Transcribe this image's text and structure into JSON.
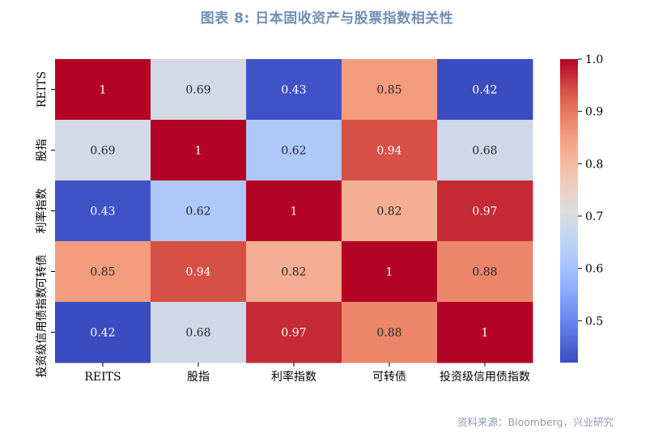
{
  "header": {
    "title": "图表 8: 日本固收资产与股票指数相关性"
  },
  "footer": {
    "source": "资料来源：Bloomberg，兴业研究"
  },
  "chart_data": {
    "type": "heatmap",
    "title": "图表 8: 日本固收资产与股票指数相关性",
    "x_labels": [
      "REITS",
      "股指",
      "利率指数",
      "可转债",
      "投资级信用债指数"
    ],
    "y_labels": [
      "REITS",
      "股指",
      "利率指数",
      "可转债",
      "投资级信用债指数"
    ],
    "cell_labels": [
      [
        "1",
        "0.69",
        "0.43",
        "0.85",
        "0.42"
      ],
      [
        "0.69",
        "1",
        "0.62",
        "0.94",
        "0.68"
      ],
      [
        "0.43",
        "0.62",
        "1",
        "0.82",
        "0.97"
      ],
      [
        "0.85",
        "0.94",
        "0.82",
        "1",
        "0.88"
      ],
      [
        "0.42",
        "0.68",
        "0.97",
        "0.88",
        "1"
      ]
    ],
    "values": [
      [
        1,
        0.69,
        0.43,
        0.85,
        0.42
      ],
      [
        0.69,
        1,
        0.62,
        0.94,
        0.68
      ],
      [
        0.43,
        0.62,
        1,
        0.82,
        0.97
      ],
      [
        0.85,
        0.94,
        0.82,
        1,
        0.88
      ],
      [
        0.42,
        0.68,
        0.97,
        0.88,
        1
      ]
    ],
    "colormap": "coolwarm",
    "vmin": 0.42,
    "vmax": 1.0,
    "colorbar_ticks": [
      "0.5",
      "0.6",
      "0.7",
      "0.8",
      "0.9",
      "1.0"
    ],
    "colorbar_tick_values": [
      0.5,
      0.6,
      0.7,
      0.8,
      0.9,
      1.0
    ],
    "grid": false
  }
}
